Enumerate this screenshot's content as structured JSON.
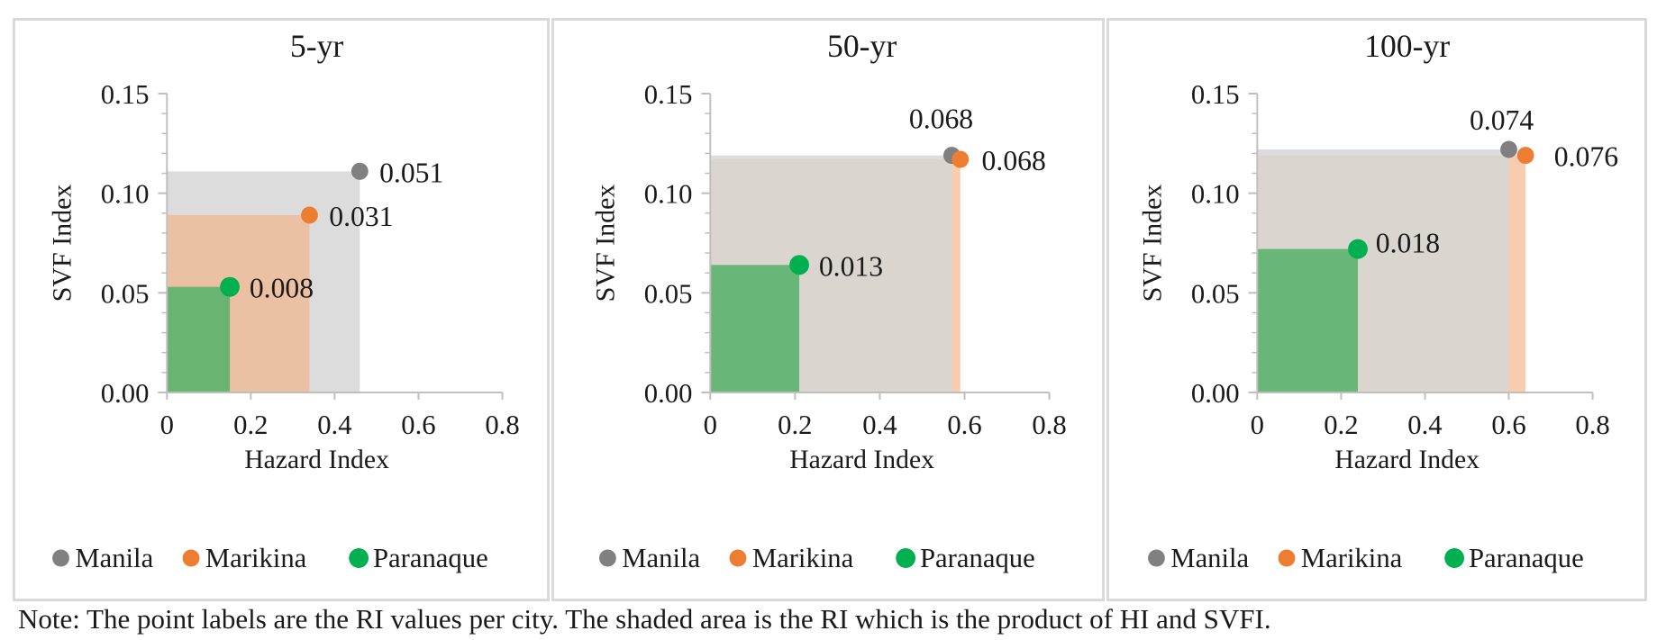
{
  "colors": {
    "manila": "#808080",
    "marikina": "#ed7d31",
    "paranaque": "#00b050",
    "manila_area": "#d6d6d6",
    "marikina_area": "#f4b183",
    "paranaque_area": "#5bb36e",
    "axis": "#bfbfbf",
    "panel_border": "#d9d9d9"
  },
  "legend": [
    "Manila",
    "Marikina",
    "Paranaque"
  ],
  "note": "Note: The point labels are the RI values per city. The shaded area is the RI which is the product of HI and SVFI.",
  "chart_data": [
    {
      "type": "scatter",
      "title": "5-yr",
      "xlabel": "Hazard Index",
      "ylabel": "SVF Index",
      "xlim": [
        0,
        0.8
      ],
      "ylim": [
        0,
        0.15
      ],
      "xticks": [
        "0",
        "0.2",
        "0.4",
        "0.6",
        "0.8"
      ],
      "yticks": [
        "0.00",
        "0.05",
        "0.10",
        "0.15"
      ],
      "grid": false,
      "legend_position": "bottom",
      "series": [
        {
          "name": "Manila",
          "x": 0.46,
          "y": 0.111,
          "label": "0.051"
        },
        {
          "name": "Marikina",
          "x": 0.34,
          "y": 0.089,
          "label": "0.031"
        },
        {
          "name": "Paranaque",
          "x": 0.15,
          "y": 0.053,
          "label": "0.008"
        }
      ]
    },
    {
      "type": "scatter",
      "title": "50-yr",
      "xlabel": "Hazard Index",
      "ylabel": "SVF Index",
      "xlim": [
        0,
        0.8
      ],
      "ylim": [
        0,
        0.15
      ],
      "xticks": [
        "0",
        "0.2",
        "0.4",
        "0.6",
        "0.8"
      ],
      "yticks": [
        "0.00",
        "0.05",
        "0.10",
        "0.15"
      ],
      "grid": false,
      "legend_position": "bottom",
      "series": [
        {
          "name": "Manila",
          "x": 0.57,
          "y": 0.119,
          "label": "0.068"
        },
        {
          "name": "Marikina",
          "x": 0.59,
          "y": 0.117,
          "label": "0.068"
        },
        {
          "name": "Paranaque",
          "x": 0.21,
          "y": 0.064,
          "label": "0.013"
        }
      ]
    },
    {
      "type": "scatter",
      "title": "100-yr",
      "xlabel": "Hazard Index",
      "ylabel": "SVF Index",
      "xlim": [
        0,
        0.8
      ],
      "ylim": [
        0,
        0.15
      ],
      "xticks": [
        "0",
        "0.2",
        "0.4",
        "0.6",
        "0.8"
      ],
      "yticks": [
        "0.00",
        "0.05",
        "0.10",
        "0.15"
      ],
      "grid": false,
      "legend_position": "bottom",
      "series": [
        {
          "name": "Manila",
          "x": 0.6,
          "y": 0.122,
          "label": "0.074"
        },
        {
          "name": "Marikina",
          "x": 0.64,
          "y": 0.119,
          "label": "0.076"
        },
        {
          "name": "Paranaque",
          "x": 0.24,
          "y": 0.072,
          "label": "0.018"
        }
      ]
    }
  ]
}
